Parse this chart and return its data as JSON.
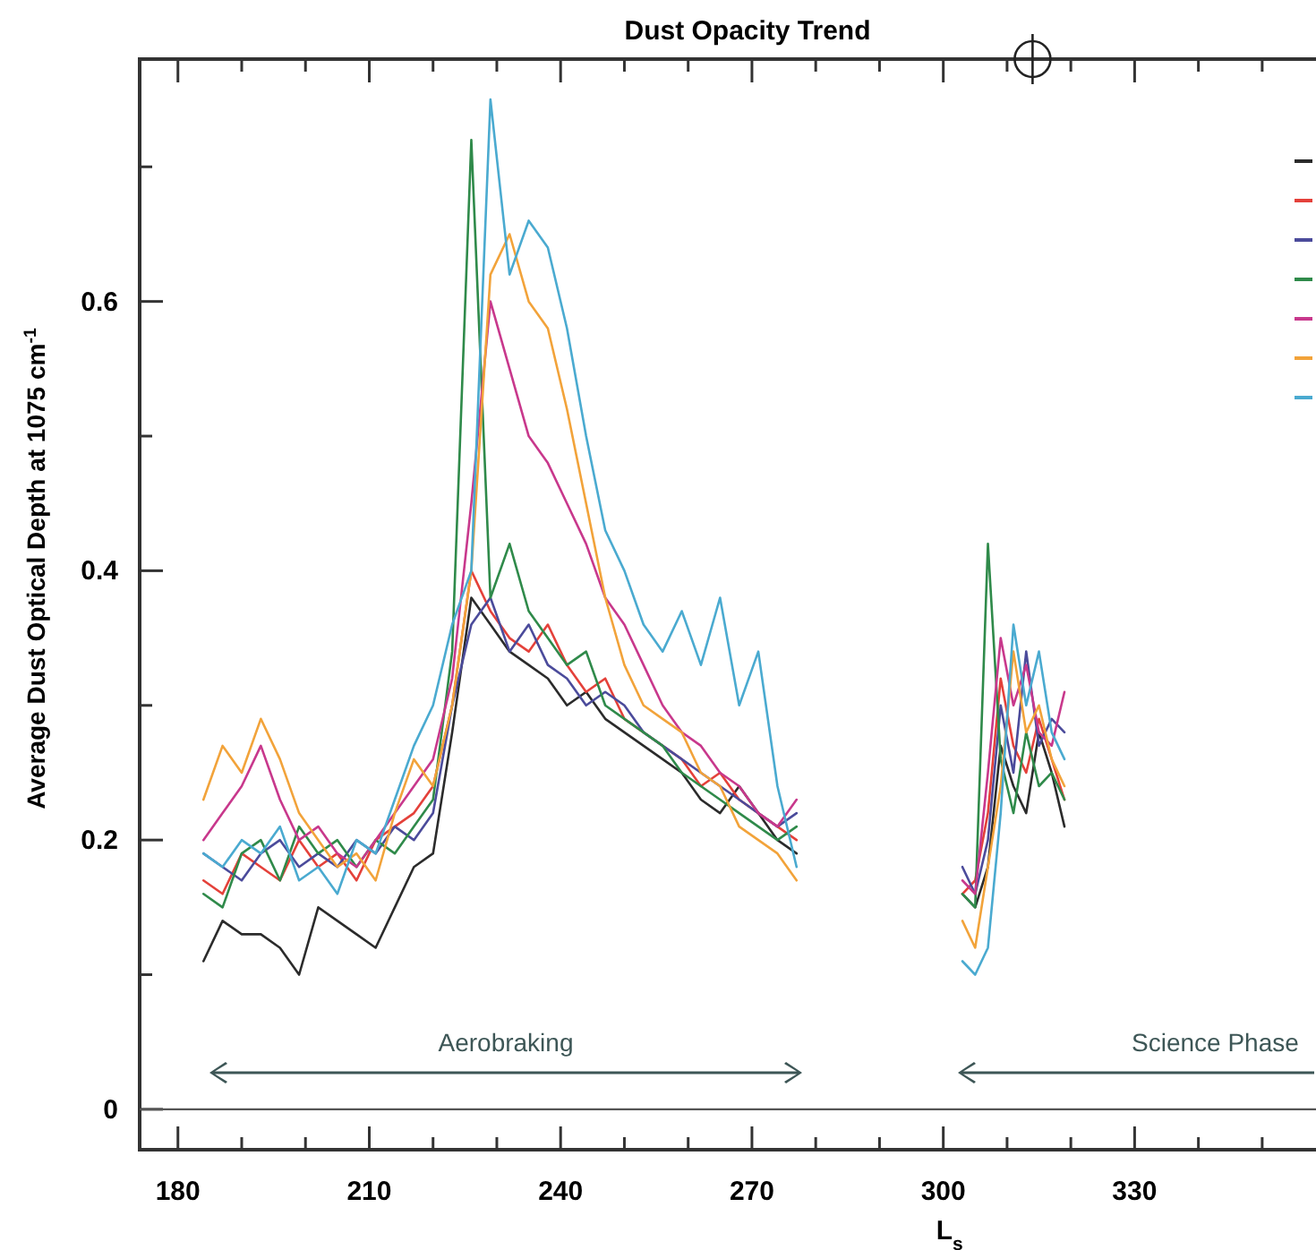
{
  "chart_data": {
    "type": "line",
    "title": "Dust Opacity Trend",
    "xlabel": "L$_{s}$",
    "ylabel": "Average Dust Optical Depth at 1075 cm$^{-1}$",
    "xlim": [
      174,
      359
    ],
    "xticks": [
      180,
      {
        "value": 190,
        "label": null
      },
      {
        "value": 200,
        "label": null
      },
      210,
      {
        "value": 220,
        "label": null
      },
      {
        "value": 230,
        "label": null
      },
      240,
      {
        "value": 250,
        "label": null
      },
      {
        "value": 260,
        "label": null
      },
      270,
      {
        "value": 280,
        "label": null
      },
      {
        "value": 290,
        "label": null
      },
      300,
      {
        "value": 310,
        "label": null
      },
      {
        "value": 320,
        "label": null
      },
      330,
      {
        "value": 340,
        "label": null
      },
      {
        "value": 350,
        "label": null
      }
    ],
    "ylim": [
      -0.03,
      0.78
    ],
    "yticks": [
      0,
      {
        "value": 0.1,
        "label": null
      },
      0.2,
      {
        "value": 0.3,
        "label": null
      },
      0.4,
      {
        "value": 0.5,
        "label": null
      },
      0.6,
      {
        "value": 0.7,
        "label": null
      }
    ],
    "grid": false,
    "line_style": "solid",
    "marker": "none",
    "ref_lines": [
      {
        "axis": "y",
        "value": 0,
        "color": "#555555"
      }
    ],
    "annotations": [
      "Aerobraking",
      "Science Phase"
    ],
    "x": [
      184,
      187,
      190,
      193,
      196,
      199,
      202,
      205,
      208,
      211,
      214,
      217,
      220,
      223,
      226,
      229,
      232,
      235,
      238,
      241,
      244,
      247,
      250,
      253,
      256,
      259,
      262,
      265,
      268,
      271,
      274,
      277
    ],
    "series": [
      {
        "color": "#2b2b2b",
        "values": [
          0.11,
          0.14,
          0.13,
          0.13,
          0.12,
          0.1,
          0.15,
          0.14,
          0.13,
          0.12,
          0.15,
          0.18,
          0.19,
          0.28,
          0.38,
          0.36,
          0.34,
          0.33,
          0.32,
          0.3,
          0.31,
          0.29,
          0.28,
          0.27,
          0.26,
          0.25,
          0.23,
          0.22,
          0.24,
          0.22,
          0.2,
          0.19
        ]
      },
      {
        "color": "#e4413a",
        "values": [
          0.17,
          0.16,
          0.19,
          0.18,
          0.17,
          0.2,
          0.18,
          0.19,
          0.17,
          0.2,
          0.21,
          0.22,
          0.24,
          0.3,
          0.4,
          0.37,
          0.35,
          0.34,
          0.36,
          0.33,
          0.31,
          0.32,
          0.29,
          0.28,
          0.27,
          0.26,
          0.24,
          0.25,
          0.23,
          0.22,
          0.21,
          0.2
        ]
      },
      {
        "color": "#4b4b9b",
        "values": [
          0.19,
          0.18,
          0.17,
          0.19,
          0.2,
          0.18,
          0.19,
          0.18,
          0.2,
          0.19,
          0.21,
          0.2,
          0.22,
          0.3,
          0.36,
          0.38,
          0.34,
          0.36,
          0.33,
          0.32,
          0.3,
          0.31,
          0.3,
          0.28,
          0.27,
          0.26,
          0.25,
          0.24,
          0.23,
          0.22,
          0.21,
          0.22
        ]
      },
      {
        "color": "#2f8a4a",
        "values": [
          0.16,
          0.15,
          0.19,
          0.2,
          0.17,
          0.21,
          0.19,
          0.2,
          0.18,
          0.2,
          0.19,
          0.21,
          0.23,
          0.34,
          0.72,
          0.38,
          0.42,
          0.37,
          0.35,
          0.33,
          0.34,
          0.3,
          0.29,
          0.28,
          0.27,
          0.25,
          0.24,
          0.23,
          0.22,
          0.21,
          0.2,
          0.21
        ]
      },
      {
        "color": "#c8388c",
        "values": [
          0.2,
          0.22,
          0.24,
          0.27,
          0.23,
          0.2,
          0.21,
          0.19,
          0.18,
          0.2,
          0.22,
          0.24,
          0.26,
          0.32,
          0.45,
          0.6,
          0.55,
          0.5,
          0.48,
          0.45,
          0.42,
          0.38,
          0.36,
          0.33,
          0.3,
          0.28,
          0.27,
          0.25,
          0.24,
          0.22,
          0.21,
          0.23
        ]
      },
      {
        "color": "#f2a33a",
        "values": [
          0.23,
          0.27,
          0.25,
          0.29,
          0.26,
          0.22,
          0.2,
          0.18,
          0.19,
          0.17,
          0.22,
          0.26,
          0.24,
          0.3,
          0.4,
          0.62,
          0.65,
          0.6,
          0.58,
          0.52,
          0.45,
          0.38,
          0.33,
          0.3,
          0.29,
          0.28,
          0.25,
          0.24,
          0.21,
          0.2,
          0.19,
          0.17
        ]
      },
      {
        "color": "#4aaad0",
        "values": [
          0.19,
          0.18,
          0.2,
          0.19,
          0.21,
          0.17,
          0.18,
          0.16,
          0.2,
          0.19,
          0.23,
          0.27,
          0.3,
          0.36,
          0.4,
          0.75,
          0.62,
          0.66,
          0.64,
          0.58,
          0.5,
          0.43,
          0.4,
          0.36,
          0.34,
          0.37,
          0.33,
          0.38,
          0.3,
          0.34,
          0.24,
          0.18
        ]
      },
      {
        "color": "#2b2b2b",
        "x": [
          303,
          305,
          307,
          309,
          311,
          313,
          315,
          317,
          319
        ],
        "values": [
          0.16,
          0.15,
          0.18,
          0.27,
          0.24,
          0.22,
          0.28,
          0.25,
          0.21
        ]
      },
      {
        "color": "#e4413a",
        "x": [
          303,
          305,
          307,
          309,
          311,
          313,
          315,
          317,
          319
        ],
        "values": [
          0.16,
          0.17,
          0.22,
          0.32,
          0.27,
          0.25,
          0.29,
          0.26,
          0.23
        ]
      },
      {
        "color": "#4b4b9b",
        "x": [
          303,
          305,
          307,
          309,
          311,
          313,
          315,
          317,
          319
        ],
        "values": [
          0.18,
          0.16,
          0.2,
          0.3,
          0.25,
          0.34,
          0.27,
          0.29,
          0.28
        ]
      },
      {
        "color": "#2f8a4a",
        "x": [
          303,
          305,
          307,
          309,
          311,
          313,
          315,
          317,
          319
        ],
        "values": [
          0.16,
          0.15,
          0.42,
          0.26,
          0.22,
          0.28,
          0.24,
          0.25,
          0.23
        ]
      },
      {
        "color": "#c8388c",
        "x": [
          303,
          305,
          307,
          309,
          311,
          313,
          315,
          317,
          319
        ],
        "values": [
          0.17,
          0.16,
          0.25,
          0.35,
          0.3,
          0.33,
          0.28,
          0.27,
          0.31
        ]
      },
      {
        "color": "#f2a33a",
        "x": [
          303,
          305,
          307,
          309,
          311,
          313,
          315,
          317,
          319
        ],
        "values": [
          0.14,
          0.12,
          0.18,
          0.24,
          0.34,
          0.28,
          0.3,
          0.26,
          0.24
        ]
      },
      {
        "color": "#4aaad0",
        "x": [
          303,
          305,
          307,
          309,
          311,
          313,
          315,
          317,
          319
        ],
        "values": [
          0.11,
          0.1,
          0.12,
          0.22,
          0.36,
          0.3,
          0.34,
          0.28,
          0.26
        ]
      }
    ]
  }
}
